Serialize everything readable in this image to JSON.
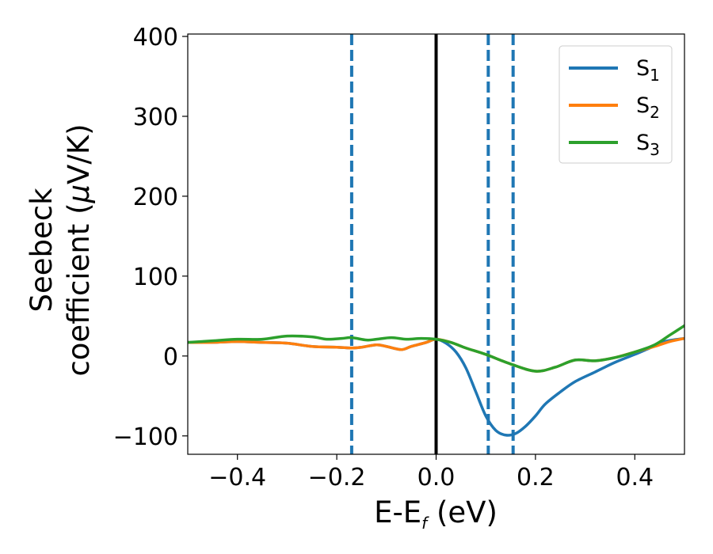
{
  "chart_data": {
    "type": "line",
    "xlabel_main": "E-E",
    "xlabel_sub": "f",
    "xlabel_unit": " (eV)",
    "ylabel_line1": "Seebeck",
    "ylabel_line2_prefix": "coefficient  (",
    "ylabel_mu": "μ",
    "ylabel_line2_suffix": "V/K)",
    "xlim": [
      -0.5,
      0.5
    ],
    "ylim": [
      -123,
      403
    ],
    "xticks": [
      -0.4,
      -0.2,
      0.0,
      0.2,
      0.4
    ],
    "xtick_labels": [
      "−0.4",
      "−0.2",
      "0.0",
      "0.2",
      "0.4"
    ],
    "yticks": [
      -100,
      0,
      100,
      200,
      300,
      400
    ],
    "ytick_labels": [
      "−100",
      "0",
      "100",
      "200",
      "300",
      "400"
    ],
    "legend_position": "top-right",
    "vlines": [
      {
        "x": 0.0,
        "style": "solid",
        "color": "#000000"
      },
      {
        "x": -0.17,
        "style": "dashed",
        "color": "#1f77b4"
      },
      {
        "x": 0.105,
        "style": "dashed",
        "color": "#1f77b4"
      },
      {
        "x": 0.155,
        "style": "dashed",
        "color": "#1f77b4"
      }
    ],
    "series": [
      {
        "name": "S",
        "sub": "1",
        "color": "#1f77b4",
        "points": [
          [
            -0.5,
            17
          ],
          [
            -0.45,
            17
          ],
          [
            -0.4,
            18
          ],
          [
            -0.35,
            17
          ],
          [
            -0.3,
            16
          ],
          [
            -0.25,
            12
          ],
          [
            -0.2,
            11
          ],
          [
            -0.17,
            10
          ],
          [
            -0.15,
            11
          ],
          [
            -0.12,
            14
          ],
          [
            -0.1,
            12
          ],
          [
            -0.07,
            8
          ],
          [
            -0.05,
            12
          ],
          [
            -0.02,
            17
          ],
          [
            0.0,
            21
          ],
          [
            0.02,
            16
          ],
          [
            0.04,
            5
          ],
          [
            0.06,
            -15
          ],
          [
            0.08,
            -45
          ],
          [
            0.1,
            -75
          ],
          [
            0.12,
            -93
          ],
          [
            0.14,
            -99
          ],
          [
            0.16,
            -97
          ],
          [
            0.18,
            -88
          ],
          [
            0.2,
            -75
          ],
          [
            0.22,
            -60
          ],
          [
            0.25,
            -45
          ],
          [
            0.28,
            -32
          ],
          [
            0.32,
            -20
          ],
          [
            0.36,
            -8
          ],
          [
            0.4,
            2
          ],
          [
            0.43,
            10
          ],
          [
            0.46,
            18
          ],
          [
            0.5,
            22
          ]
        ]
      },
      {
        "name": "S",
        "sub": "2",
        "color": "#ff7f0e",
        "points": [
          [
            -0.5,
            17
          ],
          [
            -0.45,
            17
          ],
          [
            -0.4,
            18
          ],
          [
            -0.35,
            17
          ],
          [
            -0.3,
            16
          ],
          [
            -0.25,
            12
          ],
          [
            -0.2,
            11
          ],
          [
            -0.17,
            10
          ],
          [
            -0.15,
            11
          ],
          [
            -0.12,
            14
          ],
          [
            -0.1,
            12
          ],
          [
            -0.07,
            8
          ],
          [
            -0.05,
            12
          ],
          [
            -0.02,
            17
          ],
          [
            0.0,
            21
          ],
          [
            0.03,
            17
          ],
          [
            0.06,
            10
          ],
          [
            0.1,
            2
          ],
          [
            0.15,
            -10
          ],
          [
            0.2,
            -19
          ],
          [
            0.24,
            -14
          ],
          [
            0.28,
            -5
          ],
          [
            0.32,
            -6
          ],
          [
            0.36,
            -2
          ],
          [
            0.4,
            5
          ],
          [
            0.44,
            12
          ],
          [
            0.47,
            18
          ],
          [
            0.5,
            22
          ]
        ]
      },
      {
        "name": "S",
        "sub": "3",
        "color": "#2ca02c",
        "points": [
          [
            -0.5,
            17
          ],
          [
            -0.45,
            19
          ],
          [
            -0.4,
            21
          ],
          [
            -0.35,
            21
          ],
          [
            -0.3,
            25
          ],
          [
            -0.25,
            24
          ],
          [
            -0.22,
            21
          ],
          [
            -0.19,
            22
          ],
          [
            -0.17,
            23
          ],
          [
            -0.14,
            20
          ],
          [
            -0.12,
            21
          ],
          [
            -0.09,
            23
          ],
          [
            -0.06,
            21
          ],
          [
            -0.03,
            22
          ],
          [
            0.0,
            21
          ],
          [
            0.03,
            17
          ],
          [
            0.06,
            10
          ],
          [
            0.1,
            2
          ],
          [
            0.15,
            -10
          ],
          [
            0.2,
            -19
          ],
          [
            0.24,
            -14
          ],
          [
            0.28,
            -5
          ],
          [
            0.32,
            -6
          ],
          [
            0.36,
            -2
          ],
          [
            0.4,
            5
          ],
          [
            0.44,
            14
          ],
          [
            0.47,
            26
          ],
          [
            0.5,
            38
          ]
        ]
      }
    ]
  }
}
